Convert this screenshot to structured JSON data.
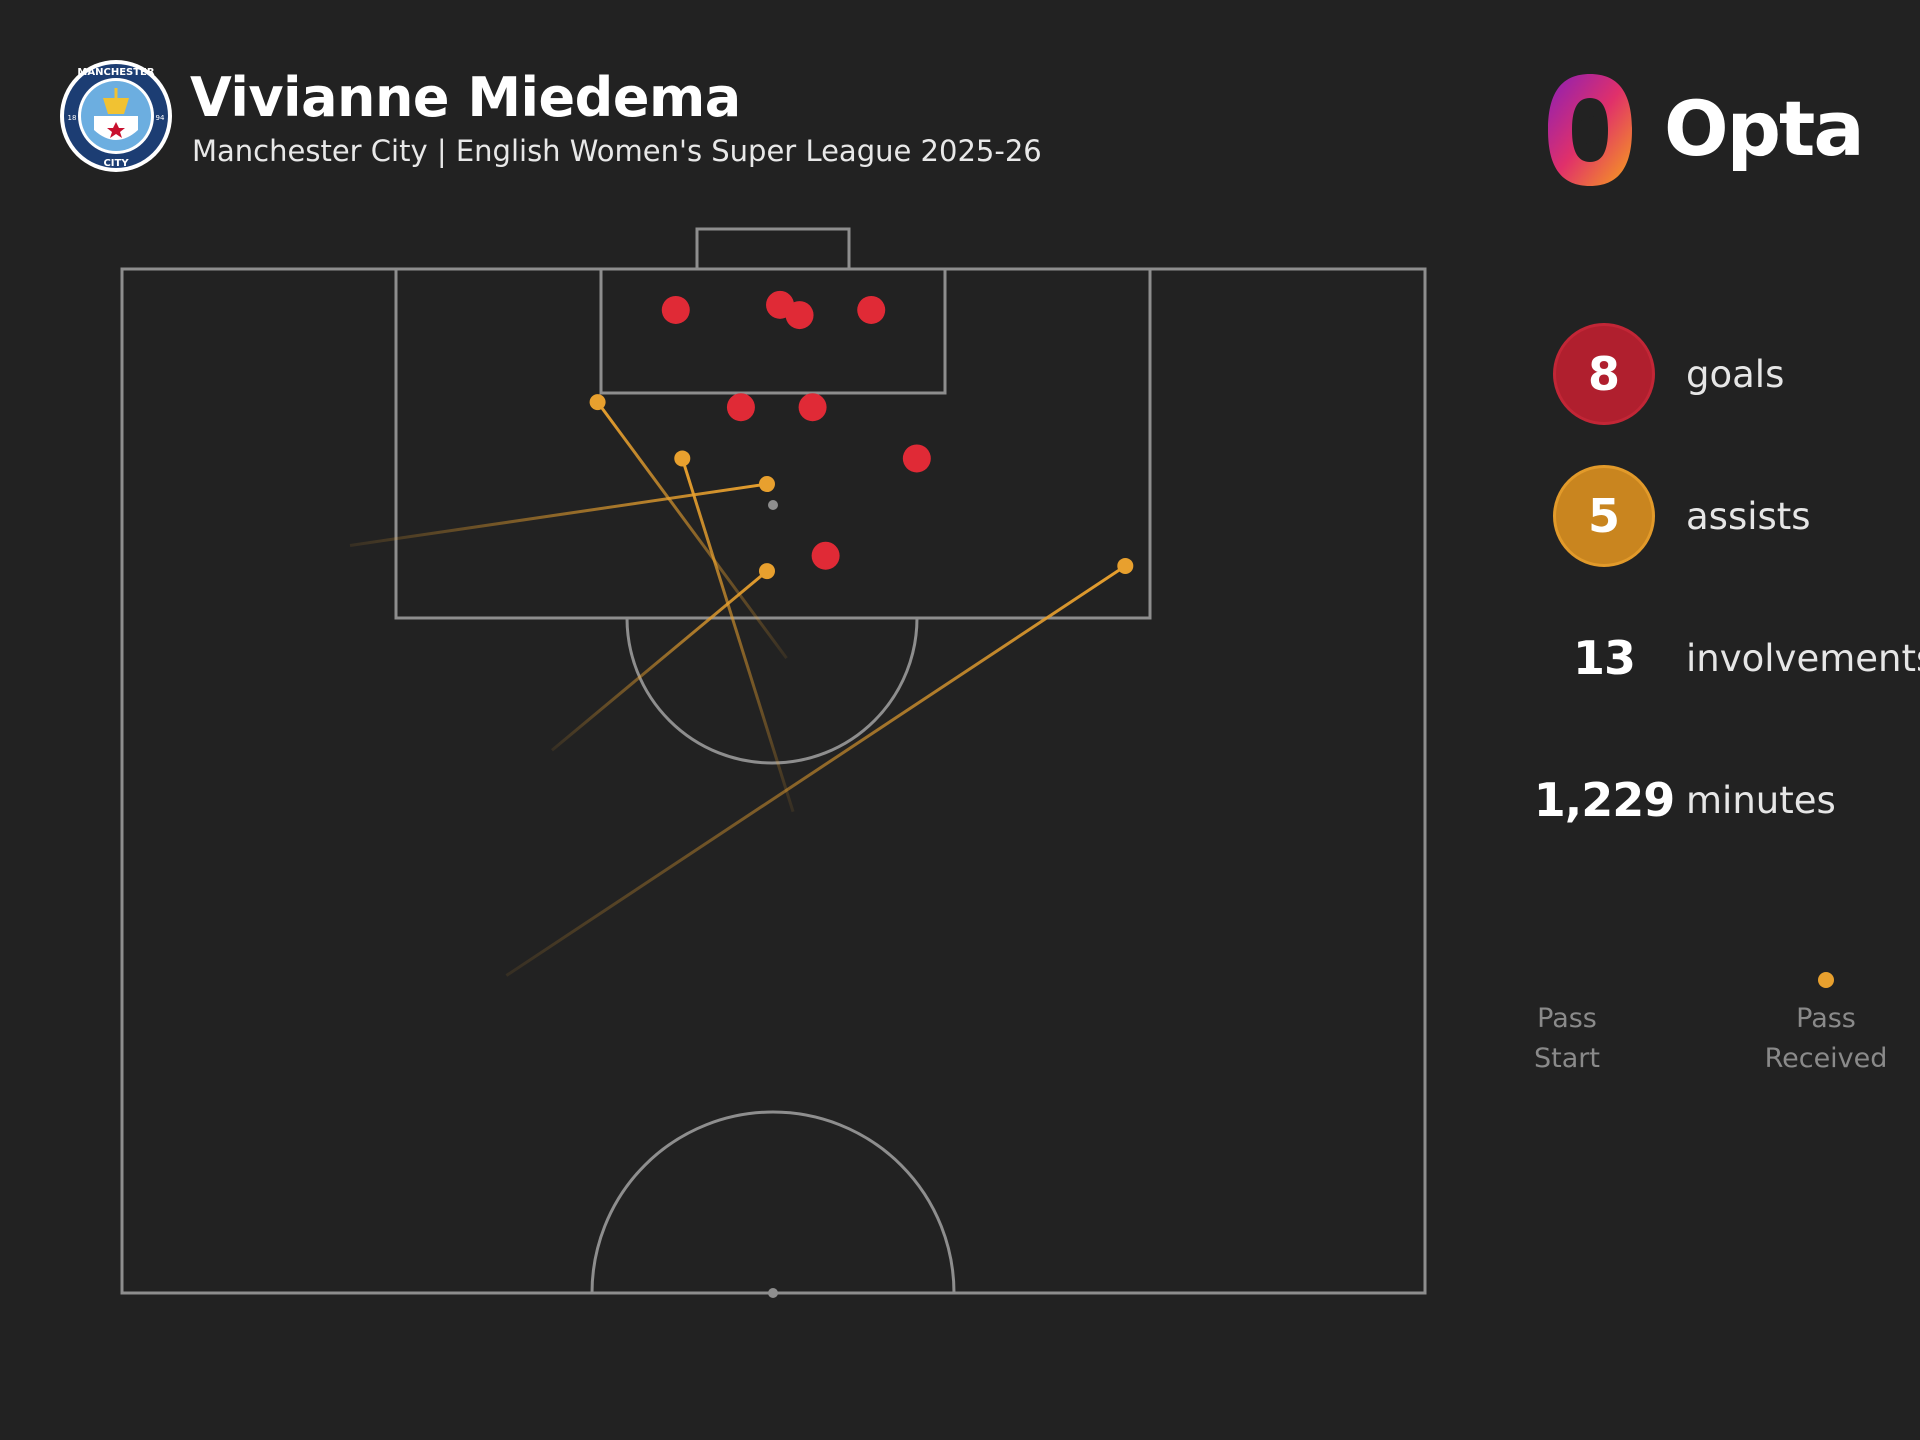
{
  "header": {
    "player": "Vivianne Miedema",
    "subtitle": "Manchester City | English Women's Super League 2025-26",
    "crest_text_top": "MANCHESTER",
    "crest_text_bottom": "CITY",
    "crest_year_left": "18",
    "crest_year_right": "94",
    "brand": "Opta"
  },
  "stats": {
    "goals": {
      "value": "8",
      "label": "goals",
      "color": "#b01f2e"
    },
    "assists": {
      "value": "5",
      "label": "assists",
      "color": "#c9851f"
    },
    "involvements": {
      "value": "13",
      "label": "involvements"
    },
    "minutes": {
      "value": "1,229",
      "label": "minutes"
    }
  },
  "legend": {
    "start_label_1": "Pass",
    "start_label_2": "Start",
    "end_label_1": "Pass",
    "end_label_2": "Received"
  },
  "colors": {
    "background": "#222222",
    "pitch_lines": "#8e8e8e",
    "goal_dot": "#e02a36",
    "assist_line": "#e8a02e"
  },
  "chart_data": {
    "type": "scatter",
    "pitch": "half-pitch, attacking goal at top",
    "goals": [
      {
        "x": 42.5,
        "y": 96.0
      },
      {
        "x": 50.5,
        "y": 96.5
      },
      {
        "x": 52.0,
        "y": 95.5
      },
      {
        "x": 57.5,
        "y": 96.0
      },
      {
        "x": 47.5,
        "y": 86.5
      },
      {
        "x": 53.0,
        "y": 86.5
      },
      {
        "x": 61.0,
        "y": 81.5
      },
      {
        "x": 54.0,
        "y": 72.0
      }
    ],
    "assists": [
      {
        "start": {
          "x": 51.0,
          "y": 62.0
        },
        "end": {
          "x": 36.5,
          "y": 87.0
        }
      },
      {
        "start": {
          "x": 17.5,
          "y": 73.0
        },
        "end": {
          "x": 49.5,
          "y": 79.0
        }
      },
      {
        "start": {
          "x": 33.0,
          "y": 53.0
        },
        "end": {
          "x": 49.5,
          "y": 70.5
        }
      },
      {
        "start": {
          "x": 51.5,
          "y": 47.0
        },
        "end": {
          "x": 43.0,
          "y": 81.5
        }
      },
      {
        "start": {
          "x": 29.5,
          "y": 31.0
        },
        "end": {
          "x": 77.0,
          "y": 71.0
        }
      }
    ]
  }
}
